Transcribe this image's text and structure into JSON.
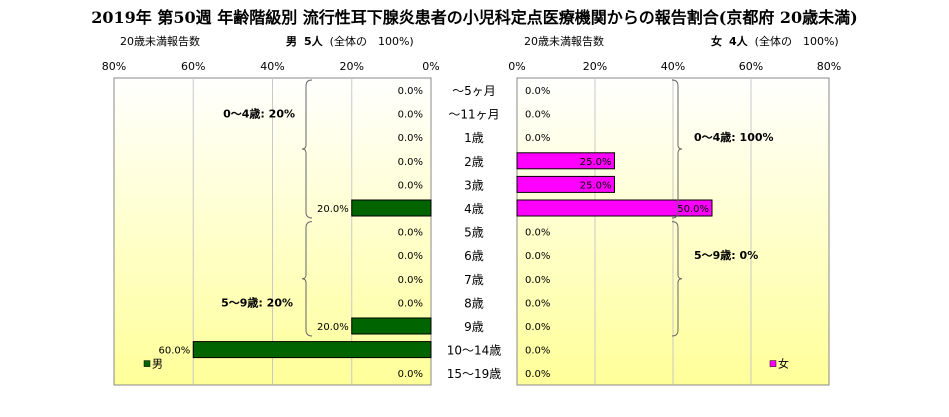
{
  "title": "2019年 第50週 年齢階級別 流行性耳下腺炎患者の小児科定点医療機関からの報告割合(京都府 20歳未満)",
  "left_header": {
    "count_label": "20歳未満報告数",
    "sex": "男",
    "count": "5人",
    "share": "(全体の　100%)"
  },
  "right_header": {
    "count_label": "20歳未満報告数",
    "sex": "女",
    "count": "4人",
    "share": "(全体の　100%)"
  },
  "colors": {
    "male": "#006400",
    "female": "#ff00ff",
    "panel_top": "#ffffff",
    "panel_bottom": "#ffff99"
  },
  "chart_data": [
    {
      "type": "bar",
      "orientation": "horizontal",
      "categories": [
        "～5ヶ月",
        "～11ヶ月",
        "1歳",
        "2歳",
        "3歳",
        "4歳",
        "5歳",
        "6歳",
        "7歳",
        "8歳",
        "9歳",
        "10～14歳",
        "15～19歳"
      ],
      "series": [
        {
          "name": "男",
          "values": [
            0.0,
            0.0,
            0.0,
            0.0,
            0.0,
            20.0,
            0.0,
            0.0,
            0.0,
            0.0,
            20.0,
            60.0,
            0.0
          ]
        }
      ],
      "value_labels": [
        "0.0%",
        "0.0%",
        "0.0%",
        "0.0%",
        "0.0%",
        "20.0%",
        "0.0%",
        "0.0%",
        "0.0%",
        "0.0%",
        "20.0%",
        "60.0%",
        "0.0%"
      ],
      "xlim": [
        0,
        80
      ],
      "xticks": [
        "80%",
        "60%",
        "40%",
        "20%",
        "0%"
      ],
      "reversed": true,
      "grid": true,
      "legend": "bottom-left",
      "annotations": [
        "0～4歳: 20%",
        "5～9歳: 20%"
      ]
    },
    {
      "type": "bar",
      "orientation": "horizontal",
      "categories": [
        "～5ヶ月",
        "～11ヶ月",
        "1歳",
        "2歳",
        "3歳",
        "4歳",
        "5歳",
        "6歳",
        "7歳",
        "8歳",
        "9歳",
        "10～14歳",
        "15～19歳"
      ],
      "series": [
        {
          "name": "女",
          "values": [
            0.0,
            0.0,
            0.0,
            25.0,
            25.0,
            50.0,
            0.0,
            0.0,
            0.0,
            0.0,
            0.0,
            0.0,
            0.0
          ]
        }
      ],
      "value_labels": [
        "0.0%",
        "0.0%",
        "0.0%",
        "25.0%",
        "25.0%",
        "50.0%",
        "0.0%",
        "0.0%",
        "0.0%",
        "0.0%",
        "0.0%",
        "0.0%",
        "0.0%"
      ],
      "xlim": [
        0,
        80
      ],
      "xticks": [
        "0%",
        "20%",
        "40%",
        "60%",
        "80%"
      ],
      "grid": true,
      "legend": "bottom-right",
      "annotations": [
        "0～4歳: 100%",
        "5～9歳: 0%"
      ]
    }
  ]
}
